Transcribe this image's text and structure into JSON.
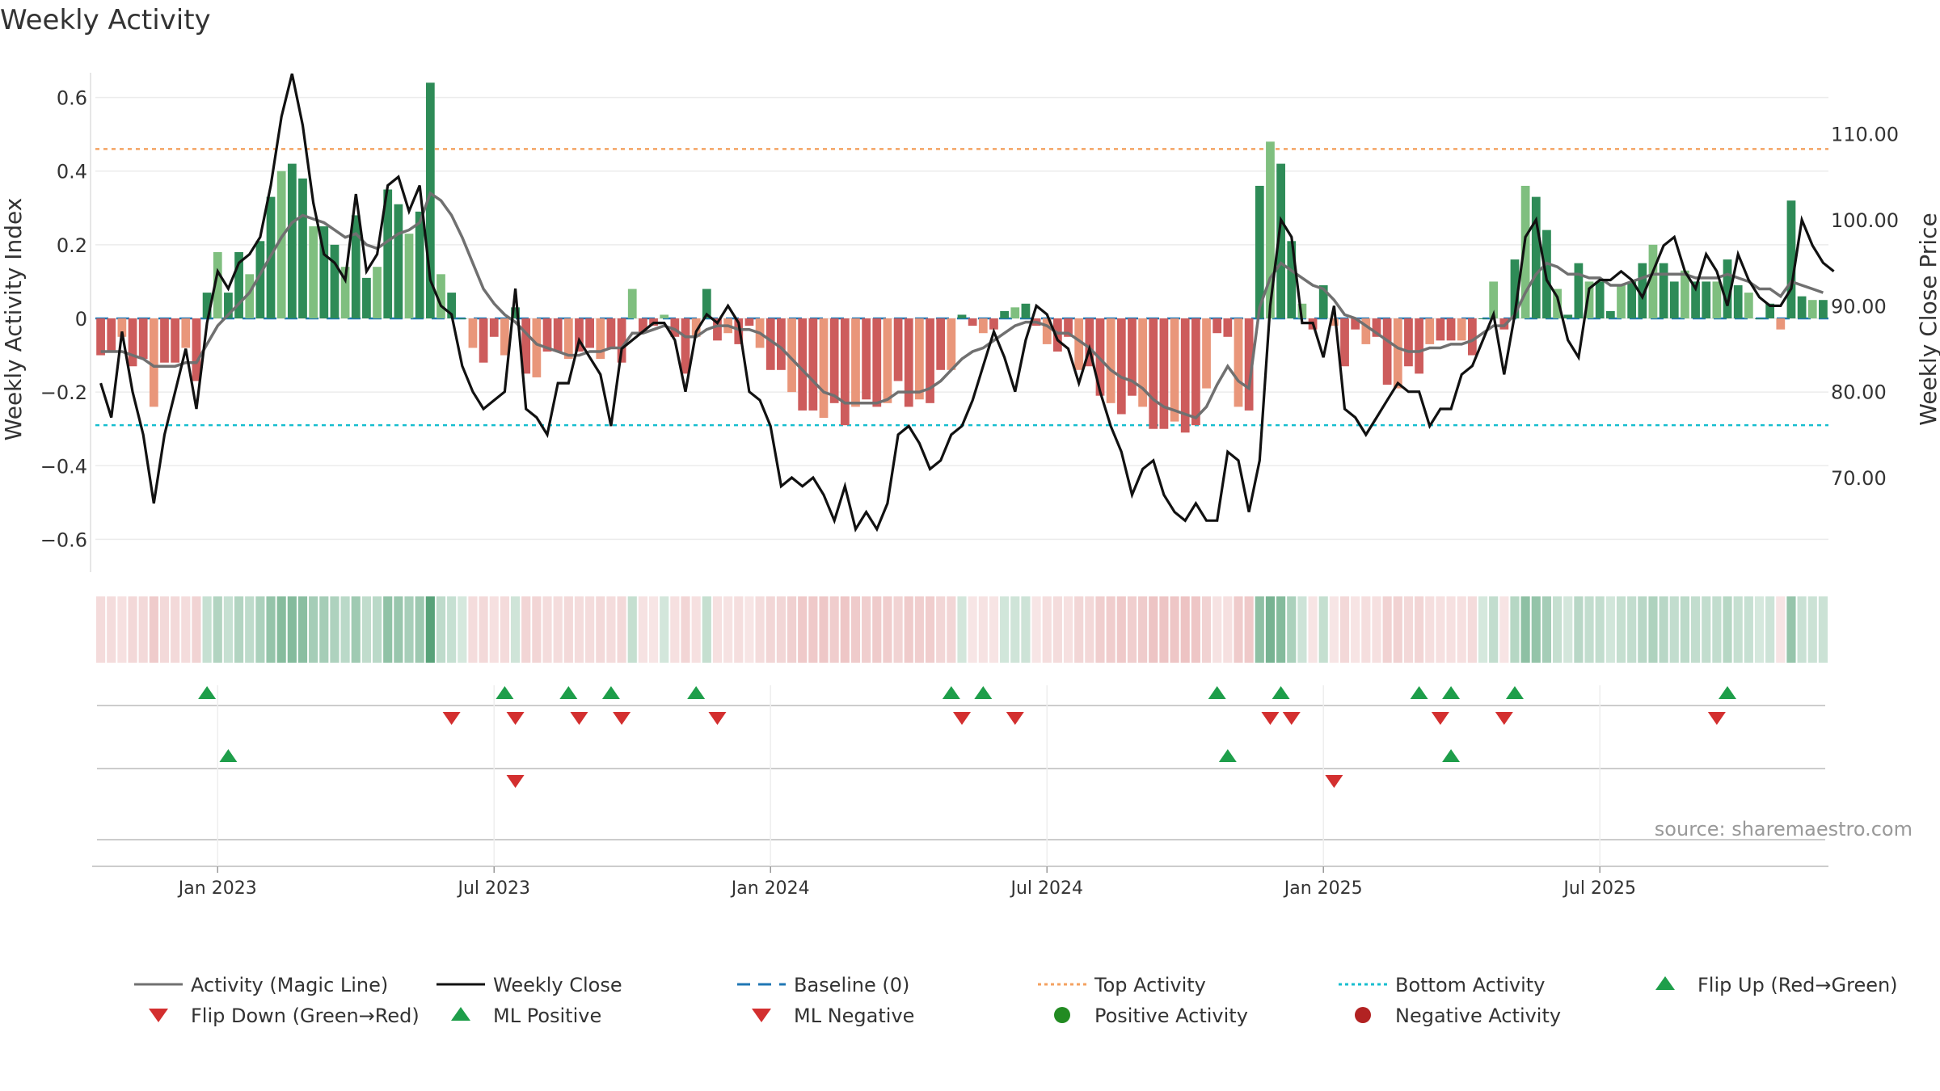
{
  "chart_data": {
    "type": "bar",
    "title": "Weekly Activity",
    "ylabel": "Weekly Activity Index",
    "y2label": "Weekly Close Price",
    "ylim": [
      -0.7,
      0.7
    ],
    "y2lim": [
      59.0,
      119.0
    ],
    "y_ticks": [
      0.6,
      0.4,
      0.2,
      0,
      -0.2,
      -0.4,
      -0.6
    ],
    "y_tick_labels": [
      "0.6",
      "0.4",
      "0.2",
      "0",
      "−0.2",
      "−0.4",
      "−0.6"
    ],
    "y2_ticks": [
      110,
      100,
      90,
      80,
      70
    ],
    "y2_tick_labels": [
      "110.00",
      "100.00",
      "90.00",
      "80.00",
      "70.00"
    ],
    "x_tick_weeks": [
      11,
      37,
      63,
      89,
      115,
      141
    ],
    "x_tick_labels": [
      "Jan 2023",
      "Jul 2023",
      "Jan 2024",
      "Jul 2024",
      "Jan 2025",
      "Jul 2025"
    ],
    "top_activity": 0.46,
    "bottom_activity": -0.29,
    "activity": [
      -0.1,
      -0.09,
      -0.05,
      -0.13,
      -0.11,
      -0.24,
      -0.12,
      -0.12,
      -0.08,
      -0.17,
      0.07,
      0.18,
      0.07,
      0.18,
      0.12,
      0.21,
      0.33,
      0.4,
      0.42,
      0.38,
      0.25,
      0.25,
      0.2,
      0.14,
      0.28,
      0.11,
      0.14,
      0.35,
      0.31,
      0.23,
      0.29,
      0.64,
      0.12,
      0.07,
      0.0,
      -0.08,
      -0.12,
      -0.05,
      -0.1,
      0.03,
      -0.15,
      -0.16,
      -0.09,
      -0.09,
      -0.11,
      -0.09,
      -0.08,
      -0.11,
      -0.08,
      -0.12,
      0.08,
      -0.04,
      -0.02,
      0.01,
      -0.05,
      -0.15,
      -0.05,
      0.08,
      -0.06,
      -0.04,
      -0.07,
      -0.02,
      -0.08,
      -0.14,
      -0.14,
      -0.2,
      -0.25,
      -0.25,
      -0.27,
      -0.23,
      -0.29,
      -0.24,
      -0.22,
      -0.24,
      -0.23,
      -0.17,
      -0.24,
      -0.22,
      -0.23,
      -0.14,
      -0.14,
      0.01,
      -0.02,
      -0.04,
      -0.03,
      0.02,
      0.03,
      0.04,
      -0.02,
      -0.07,
      -0.09,
      -0.05,
      -0.14,
      -0.13,
      -0.21,
      -0.23,
      -0.26,
      -0.21,
      -0.24,
      -0.3,
      -0.3,
      -0.28,
      -0.31,
      -0.29,
      -0.19,
      -0.04,
      -0.05,
      -0.24,
      -0.25,
      0.36,
      0.48,
      0.42,
      0.21,
      0.04,
      -0.03,
      0.09,
      -0.02,
      -0.13,
      -0.03,
      -0.07,
      -0.05,
      -0.18,
      -0.19,
      -0.13,
      -0.15,
      -0.07,
      -0.06,
      -0.06,
      -0.06,
      -0.1,
      0.0,
      0.1,
      -0.03,
      0.16,
      0.36,
      0.33,
      0.24,
      0.08,
      0.01,
      0.15,
      0.1,
      0.1,
      0.02,
      0.09,
      0.1,
      0.15,
      0.2,
      0.15,
      0.1,
      0.13,
      0.1,
      0.1,
      0.1,
      0.16,
      0.09,
      0.07,
      0.0,
      0.04,
      -0.03,
      0.32,
      0.06,
      0.05,
      0.05
    ],
    "magic_line": [
      -0.09,
      -0.09,
      -0.09,
      -0.1,
      -0.11,
      -0.13,
      -0.13,
      -0.13,
      -0.12,
      -0.12,
      -0.07,
      -0.02,
      0.01,
      0.04,
      0.07,
      0.12,
      0.17,
      0.22,
      0.26,
      0.28,
      0.27,
      0.26,
      0.24,
      0.22,
      0.23,
      0.2,
      0.19,
      0.21,
      0.23,
      0.24,
      0.26,
      0.34,
      0.32,
      0.28,
      0.22,
      0.15,
      0.08,
      0.04,
      0.01,
      -0.01,
      -0.04,
      -0.07,
      -0.08,
      -0.09,
      -0.1,
      -0.1,
      -0.09,
      -0.09,
      -0.08,
      -0.08,
      -0.04,
      -0.04,
      -0.03,
      -0.02,
      -0.03,
      -0.05,
      -0.05,
      -0.03,
      -0.02,
      -0.02,
      -0.03,
      -0.03,
      -0.04,
      -0.06,
      -0.08,
      -0.11,
      -0.14,
      -0.17,
      -0.2,
      -0.21,
      -0.23,
      -0.23,
      -0.23,
      -0.23,
      -0.22,
      -0.2,
      -0.2,
      -0.2,
      -0.19,
      -0.17,
      -0.14,
      -0.11,
      -0.09,
      -0.08,
      -0.06,
      -0.04,
      -0.02,
      -0.01,
      -0.01,
      -0.02,
      -0.04,
      -0.04,
      -0.06,
      -0.08,
      -0.11,
      -0.14,
      -0.16,
      -0.17,
      -0.19,
      -0.22,
      -0.24,
      -0.25,
      -0.26,
      -0.27,
      -0.24,
      -0.18,
      -0.13,
      -0.17,
      -0.19,
      0.03,
      0.11,
      0.15,
      0.13,
      0.11,
      0.09,
      0.08,
      0.05,
      0.01,
      0.0,
      -0.02,
      -0.04,
      -0.06,
      -0.08,
      -0.09,
      -0.09,
      -0.08,
      -0.08,
      -0.07,
      -0.07,
      -0.06,
      -0.04,
      -0.02,
      -0.02,
      0.01,
      0.07,
      0.12,
      0.15,
      0.14,
      0.12,
      0.12,
      0.11,
      0.11,
      0.09,
      0.09,
      0.1,
      0.11,
      0.12,
      0.12,
      0.12,
      0.12,
      0.11,
      0.11,
      0.11,
      0.12,
      0.11,
      0.1,
      0.08,
      0.08,
      0.06,
      0.1,
      0.09,
      0.08,
      0.07
    ],
    "weekly_close": [
      81.0,
      77.0,
      87.0,
      80.0,
      75.0,
      67.0,
      75.0,
      80.0,
      85.0,
      78.0,
      88.0,
      94.0,
      92.0,
      95.0,
      96.0,
      98.0,
      104.0,
      112.0,
      117.0,
      111.0,
      102.0,
      96.0,
      95.0,
      93.0,
      103.0,
      94.0,
      96.0,
      104.0,
      105.0,
      101.0,
      104.0,
      93.0,
      90.0,
      89.0,
      83.0,
      80.0,
      78.0,
      79.0,
      80.0,
      92.0,
      78.0,
      77.0,
      75.0,
      81.0,
      81.0,
      86.0,
      84.0,
      82.0,
      76.0,
      85.0,
      86.0,
      87.0,
      88.0,
      88.0,
      86.0,
      80.0,
      87.0,
      89.0,
      88.0,
      90.0,
      88.0,
      80.0,
      79.0,
      76.0,
      69.0,
      70.0,
      69.0,
      70.0,
      68.0,
      65.0,
      69.0,
      64.0,
      66.0,
      64.0,
      67.0,
      75.0,
      76.0,
      74.0,
      71.0,
      72.0,
      75.0,
      76.0,
      79.0,
      83.0,
      87.0,
      84.0,
      80.0,
      86.0,
      90.0,
      89.0,
      86.0,
      85.0,
      81.0,
      85.0,
      80.0,
      76.0,
      73.0,
      68.0,
      71.0,
      72.0,
      68.0,
      66.0,
      65.0,
      67.0,
      65.0,
      65.0,
      73.0,
      72.0,
      66.0,
      72.0,
      90.0,
      100.0,
      98.0,
      88.0,
      88.0,
      84.0,
      90.0,
      78.0,
      77.0,
      75.0,
      77.0,
      79.0,
      81.0,
      80.0,
      80.0,
      76.0,
      78.0,
      78.0,
      82.0,
      83.0,
      86.0,
      89.0,
      82.0,
      89.0,
      98.0,
      100.0,
      93.0,
      91.0,
      86.0,
      84.0,
      92.0,
      93.0,
      93.0,
      94.0,
      93.0,
      91.0,
      94.0,
      97.0,
      98.0,
      94.0,
      92.0,
      96.0,
      94.0,
      90.0,
      96.0,
      93.0,
      91.0,
      90.0,
      90.0,
      92.0,
      100.0,
      97.0,
      95.0,
      94.0
    ],
    "flip_up": [
      10,
      38,
      44,
      48,
      56,
      80,
      83,
      105,
      111,
      124,
      127,
      133,
      153
    ],
    "flip_down": [
      33,
      39,
      45,
      49,
      58,
      81,
      86,
      110,
      112,
      126,
      132,
      152
    ],
    "ml_positive": [
      12,
      106,
      127
    ],
    "ml_negative": [
      39,
      116
    ],
    "series_names": [
      "Activity (Magic Line)",
      "Weekly Close",
      "Baseline (0)",
      "Top Activity",
      "Bottom Activity",
      "Flip Up (Red→Green)",
      "Flip Down (Green→Red)",
      "ML Positive",
      "ML Negative",
      "Positive Activity",
      "Negative Activity"
    ]
  },
  "source_text": "source: sharemaestro.com",
  "legend": {
    "magic_line": "Activity (Magic Line)",
    "weekly_close": "Weekly Close",
    "baseline": "Baseline (0)",
    "top_activity": "Top Activity",
    "bottom_activity": "Bottom Activity",
    "flip_up": "Flip Up (Red→Green)",
    "flip_down": "Flip Down (Green→Red)",
    "ml_positive": "ML Positive",
    "ml_negative": "ML Negative",
    "positive_activity": "Positive Activity",
    "negative_activity": "Negative Activity"
  },
  "colors": {
    "green_strong": "#2e8b57",
    "green_light": "#7fbf7f",
    "red_strong": "#cd5c5c",
    "red_light": "#e9967a",
    "magic_line": "#707070",
    "weekly_close": "#111111",
    "baseline": "#1f77b4",
    "top_activity": "#f4a261",
    "bottom_activity": "#17becf",
    "marker_up": "#1e9e4a",
    "marker_down": "#d32f2f",
    "dot_positive": "#228b22",
    "dot_negative": "#b22222"
  }
}
